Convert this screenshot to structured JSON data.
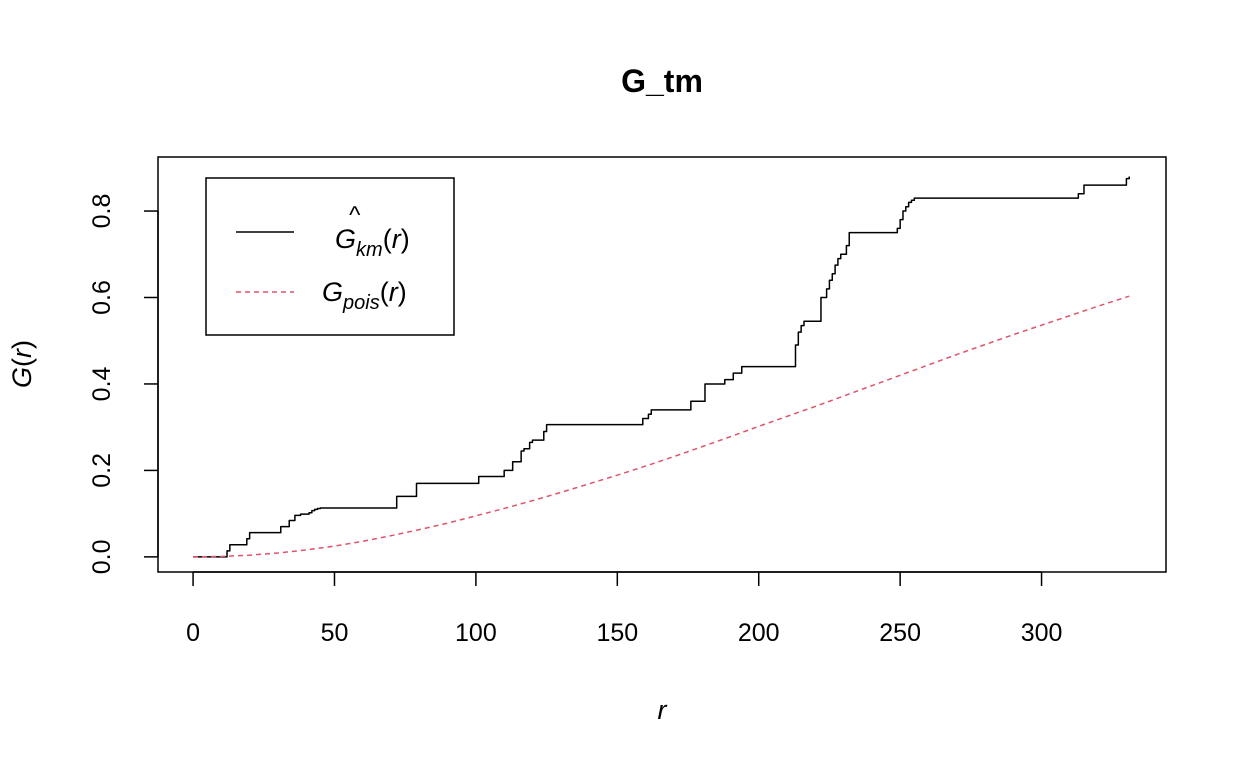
{
  "chart_data": {
    "type": "line",
    "title": "G_tm",
    "xlabel": "r",
    "ylabel": "G(r)",
    "xlim": [
      -12.4,
      344
    ],
    "ylim": [
      -0.035,
      0.925
    ],
    "x_ticks": [
      0,
      50,
      100,
      150,
      200,
      250,
      300
    ],
    "x_tick_labels": [
      "0",
      "50",
      "100",
      "150",
      "200",
      "250",
      "300"
    ],
    "y_ticks": [
      0.0,
      0.2,
      0.4,
      0.6,
      0.8
    ],
    "y_tick_labels": [
      "0.0",
      "0.2",
      "0.4",
      "0.6",
      "0.8"
    ],
    "grid": false,
    "legend_position": "top-left",
    "legend": {
      "km": {
        "base": "G",
        "hat": "^",
        "sub": "km",
        "arg": "(r)"
      },
      "pois": {
        "base": "G",
        "sub": "pois",
        "arg": "(r)"
      }
    },
    "series": [
      {
        "id": "km",
        "style": "step",
        "color": "#000000",
        "dash": "solid",
        "x": [
          0,
          5,
          10,
          12,
          13,
          18,
          19,
          20,
          30,
          31,
          32,
          34,
          35,
          36,
          37,
          38,
          40,
          41,
          42,
          43,
          44,
          45,
          70,
          72,
          77,
          79,
          96,
          101,
          109,
          110,
          111,
          113,
          114,
          116,
          117,
          119,
          120,
          124,
          125,
          158,
          159,
          161,
          162,
          175,
          176,
          180,
          181,
          187,
          188,
          190,
          191,
          193,
          194,
          212,
          213,
          214,
          215,
          216,
          221,
          222,
          224,
          225,
          226,
          227,
          228,
          229,
          231,
          232,
          248,
          249,
          250,
          251,
          252,
          253,
          254,
          255,
          312,
          313,
          315,
          316,
          329,
          330,
          331
        ],
        "y": [
          0.0,
          0.0,
          0.0,
          0.014,
          0.028,
          0.028,
          0.042,
          0.056,
          0.056,
          0.07,
          0.07,
          0.084,
          0.084,
          0.096,
          0.096,
          0.099,
          0.099,
          0.102,
          0.107,
          0.11,
          0.112,
          0.113,
          0.113,
          0.14,
          0.14,
          0.17,
          0.17,
          0.186,
          0.186,
          0.2,
          0.2,
          0.22,
          0.22,
          0.245,
          0.25,
          0.265,
          0.27,
          0.29,
          0.306,
          0.306,
          0.32,
          0.33,
          0.34,
          0.34,
          0.36,
          0.36,
          0.4,
          0.4,
          0.41,
          0.41,
          0.425,
          0.425,
          0.44,
          0.44,
          0.49,
          0.52,
          0.535,
          0.545,
          0.545,
          0.6,
          0.62,
          0.64,
          0.655,
          0.675,
          0.69,
          0.7,
          0.72,
          0.75,
          0.75,
          0.76,
          0.78,
          0.8,
          0.81,
          0.82,
          0.825,
          0.83,
          0.83,
          0.84,
          0.86,
          0.86,
          0.86,
          0.875,
          0.88
        ]
      },
      {
        "id": "pois",
        "style": "line",
        "color": "#DF536B",
        "dash": "dashed",
        "x": [
          0,
          10,
          20,
          30,
          40,
          50,
          60,
          70,
          80,
          90,
          100,
          110,
          120,
          130,
          140,
          150,
          160,
          170,
          180,
          190,
          200,
          210,
          220,
          230,
          240,
          250,
          260,
          270,
          280,
          290,
          300,
          310,
          320,
          331
        ],
        "y": [
          0.0,
          0.001,
          0.004,
          0.009,
          0.016,
          0.025,
          0.036,
          0.049,
          0.063,
          0.078,
          0.095,
          0.112,
          0.13,
          0.149,
          0.169,
          0.189,
          0.21,
          0.232,
          0.255,
          0.278,
          0.302,
          0.325,
          0.348,
          0.372,
          0.396,
          0.42,
          0.444,
          0.468,
          0.491,
          0.514,
          0.536,
          0.558,
          0.58,
          0.603
        ]
      }
    ]
  }
}
